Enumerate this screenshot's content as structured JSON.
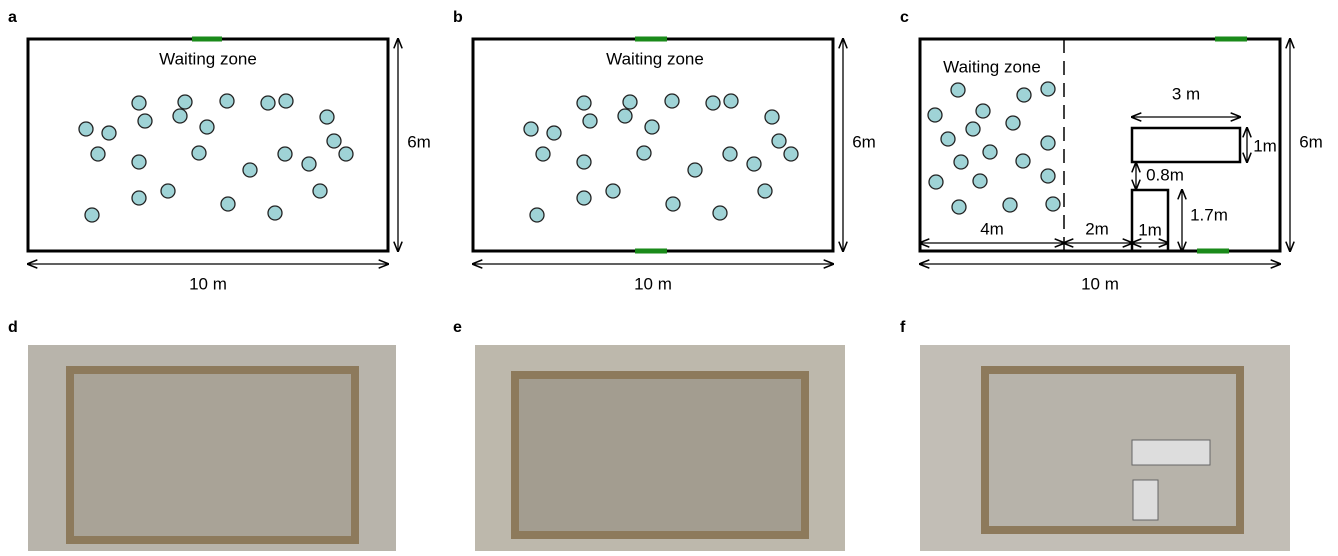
{
  "panels": [
    {
      "label": "a",
      "waiting_zone": "Waiting zone",
      "height": "6m",
      "width": "10 m"
    },
    {
      "label": "b",
      "waiting_zone": "Waiting zone",
      "height": "6m",
      "width": "10 m"
    },
    {
      "label": "c",
      "waiting_zone": "Waiting zone",
      "height": "6m",
      "width": "10 m",
      "dimensions": [
        "3 m",
        "1m",
        "0.8m",
        "1.7m",
        "4m",
        "2m",
        "1m"
      ]
    }
  ],
  "photos": [
    {
      "label": "d"
    },
    {
      "label": "e"
    },
    {
      "label": "f"
    }
  ]
}
